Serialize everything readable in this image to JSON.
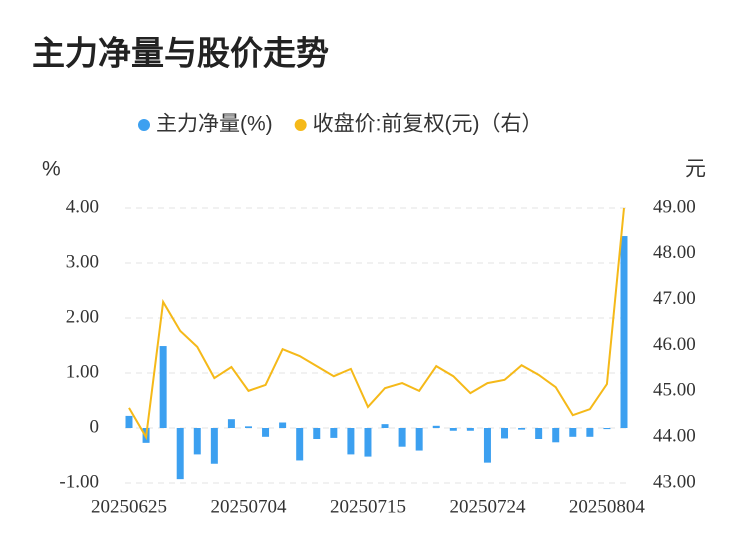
{
  "chart_data": {
    "type": "bar",
    "title": "主力净量与股价走势",
    "ylabel": "%",
    "y2label": "元",
    "categories": [
      "20250625",
      null,
      null,
      null,
      null,
      null,
      null,
      "20250704",
      null,
      null,
      null,
      null,
      null,
      null,
      "20250715",
      null,
      null,
      null,
      null,
      null,
      null,
      "20250724",
      null,
      null,
      null,
      null,
      null,
      null,
      "20250804",
      null
    ],
    "series": [
      {
        "name": "主力净量(%)",
        "type": "bar",
        "color": "#3ca0f0",
        "values": [
          0.22,
          -0.27,
          1.49,
          -0.93,
          -0.48,
          -0.65,
          0.16,
          0.03,
          -0.16,
          0.1,
          -0.59,
          -0.2,
          -0.18,
          -0.48,
          -0.52,
          0.07,
          -0.34,
          -0.41,
          0.04,
          -0.05,
          -0.05,
          -0.63,
          -0.19,
          -0.03,
          -0.2,
          -0.26,
          -0.16,
          -0.16,
          -0.02,
          3.49
        ]
      },
      {
        "name": "收盘价:前复权(元)（右）",
        "type": "line",
        "axis": "y2",
        "color": "#f5b919",
        "values": [
          44.64,
          44.0,
          46.95,
          46.32,
          45.97,
          45.29,
          45.53,
          45.01,
          45.14,
          45.92,
          45.77,
          45.55,
          45.33,
          45.49,
          44.66,
          45.07,
          45.18,
          45.01,
          45.55,
          45.33,
          44.96,
          45.18,
          45.25,
          45.57,
          45.36,
          45.09,
          44.48,
          44.61,
          45.16,
          49.0
        ]
      }
    ],
    "ylim": [
      -1,
      4
    ],
    "yticks": [
      {
        "value": -1,
        "label": "-1.00"
      },
      0,
      {
        "value": 1,
        "label": "1.00"
      },
      {
        "value": 2,
        "label": "2.00"
      },
      {
        "value": 3,
        "label": "3.00"
      },
      {
        "value": 4,
        "label": "4.00"
      }
    ],
    "y2lim": [
      43,
      49
    ],
    "y2ticks": [
      {
        "value": 43,
        "label": "43.00"
      },
      {
        "value": 44,
        "label": "44.00"
      },
      {
        "value": 45,
        "label": "45.00"
      },
      {
        "value": 46,
        "label": "46.00"
      },
      {
        "value": 47,
        "label": "47.00"
      },
      {
        "value": 48,
        "label": "48.00"
      },
      {
        "value": 49,
        "label": "49.00"
      }
    ],
    "grid": true
  }
}
